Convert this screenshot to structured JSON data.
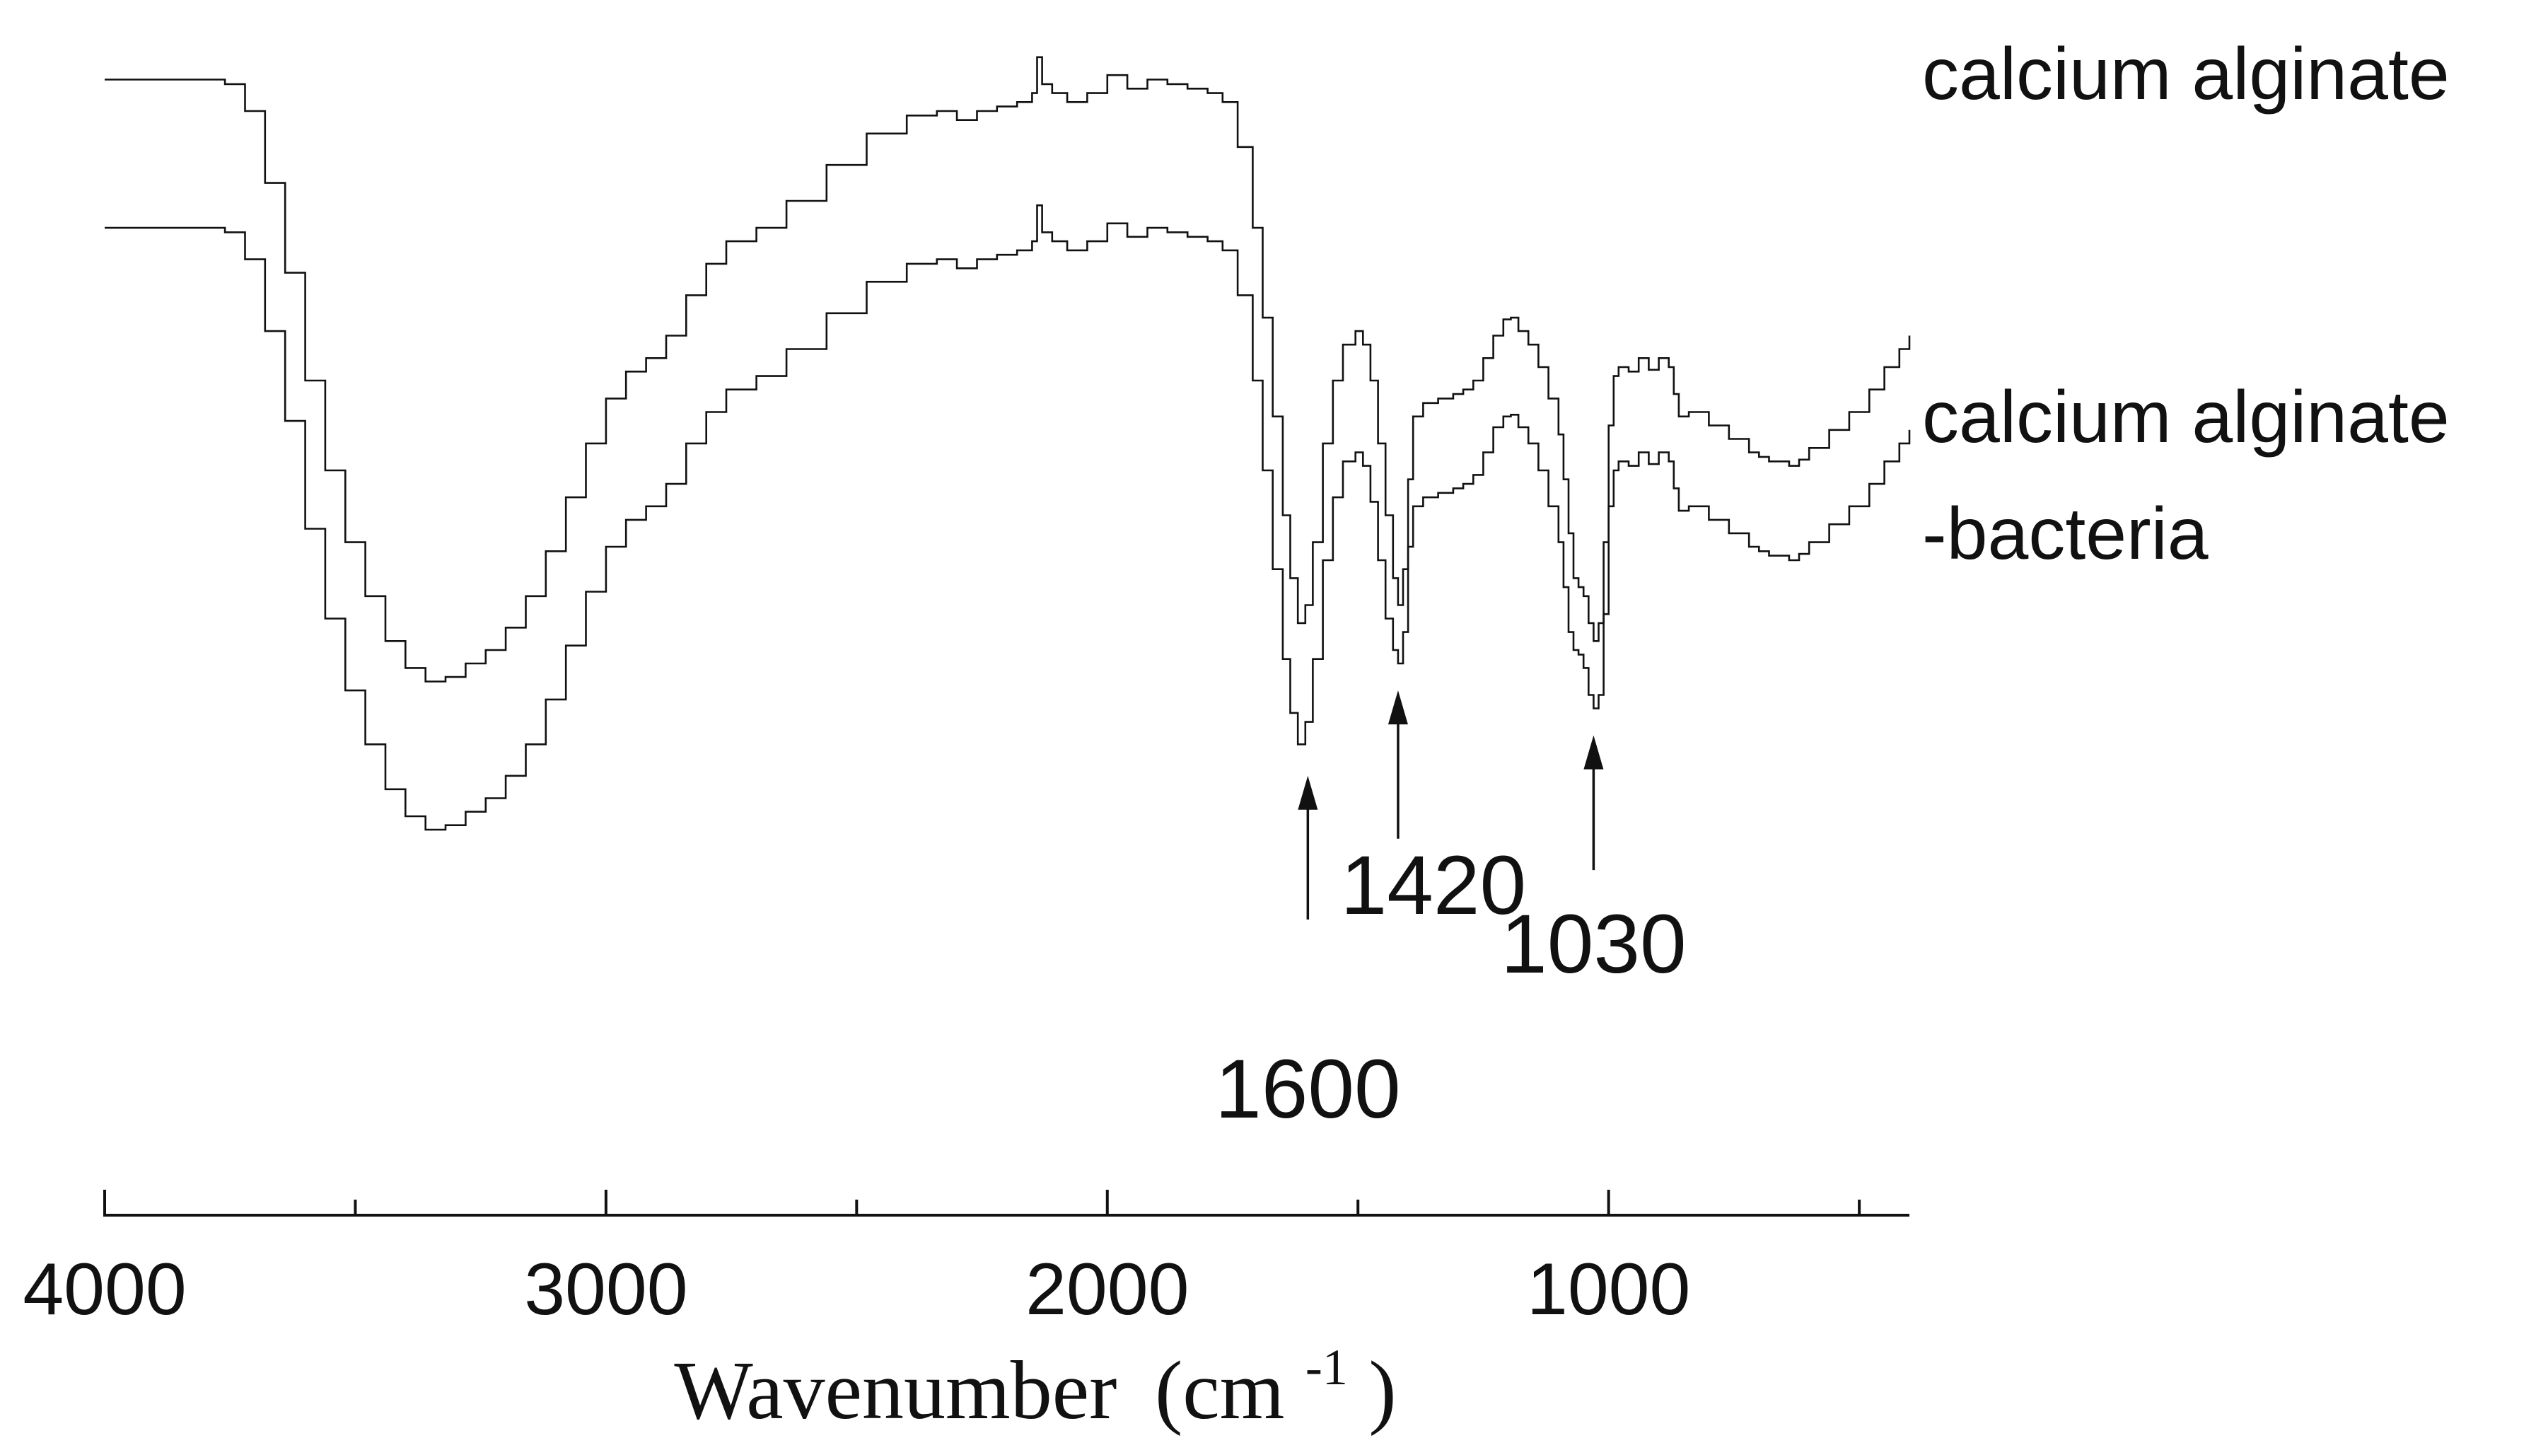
{
  "chart_data": {
    "type": "line",
    "title": "",
    "xlabel": "Wavenumber",
    "xlabel_unit_open": "(cm",
    "xlabel_unit_sup": "-1",
    "xlabel_unit_close": ")",
    "ylabel": "",
    "xlim": [
      4000,
      400
    ],
    "x_reversed": true,
    "grid": false,
    "x_ticks": [
      {
        "value": 4000,
        "label": "4000"
      },
      {
        "value": 3000,
        "label": "3000"
      },
      {
        "value": 2000,
        "label": "2000"
      },
      {
        "value": 1000,
        "label": "1000"
      }
    ],
    "x_minor_ticks": [
      3500,
      2500,
      1500,
      500
    ],
    "series": [
      {
        "name": "calcium alginate",
        "label_lines": [
          "calcium alginate"
        ],
        "points": [
          [
            4000,
            0.935
          ],
          [
            3800,
            0.935
          ],
          [
            3760,
            0.93
          ],
          [
            3720,
            0.9
          ],
          [
            3680,
            0.82
          ],
          [
            3640,
            0.72
          ],
          [
            3600,
            0.6
          ],
          [
            3560,
            0.5
          ],
          [
            3520,
            0.42
          ],
          [
            3480,
            0.36
          ],
          [
            3440,
            0.31
          ],
          [
            3400,
            0.28
          ],
          [
            3360,
            0.265
          ],
          [
            3320,
            0.27
          ],
          [
            3280,
            0.285
          ],
          [
            3240,
            0.3
          ],
          [
            3200,
            0.325
          ],
          [
            3160,
            0.36
          ],
          [
            3120,
            0.41
          ],
          [
            3080,
            0.47
          ],
          [
            3040,
            0.53
          ],
          [
            3000,
            0.58
          ],
          [
            2960,
            0.61
          ],
          [
            2920,
            0.625
          ],
          [
            2880,
            0.65
          ],
          [
            2840,
            0.695
          ],
          [
            2800,
            0.73
          ],
          [
            2760,
            0.755
          ],
          [
            2700,
            0.77
          ],
          [
            2640,
            0.8
          ],
          [
            2560,
            0.84
          ],
          [
            2480,
            0.875
          ],
          [
            2400,
            0.895
          ],
          [
            2340,
            0.9
          ],
          [
            2300,
            0.89
          ],
          [
            2260,
            0.9
          ],
          [
            2220,
            0.905
          ],
          [
            2180,
            0.91
          ],
          [
            2150,
            0.92
          ],
          [
            2140,
            0.96
          ],
          [
            2130,
            0.93
          ],
          [
            2110,
            0.92
          ],
          [
            2080,
            0.91
          ],
          [
            2040,
            0.92
          ],
          [
            2000,
            0.94
          ],
          [
            1960,
            0.925
          ],
          [
            1920,
            0.935
          ],
          [
            1880,
            0.93
          ],
          [
            1840,
            0.925
          ],
          [
            1800,
            0.92
          ],
          [
            1770,
            0.91
          ],
          [
            1740,
            0.86
          ],
          [
            1710,
            0.77
          ],
          [
            1690,
            0.67
          ],
          [
            1670,
            0.56
          ],
          [
            1650,
            0.45
          ],
          [
            1635,
            0.38
          ],
          [
            1620,
            0.33
          ],
          [
            1605,
            0.35
          ],
          [
            1590,
            0.42
          ],
          [
            1570,
            0.53
          ],
          [
            1550,
            0.6
          ],
          [
            1530,
            0.64
          ],
          [
            1505,
            0.655
          ],
          [
            1490,
            0.64
          ],
          [
            1475,
            0.6
          ],
          [
            1460,
            0.53
          ],
          [
            1445,
            0.45
          ],
          [
            1430,
            0.38
          ],
          [
            1420,
            0.35
          ],
          [
            1410,
            0.39
          ],
          [
            1400,
            0.49
          ],
          [
            1390,
            0.56
          ],
          [
            1370,
            0.575
          ],
          [
            1340,
            0.58
          ],
          [
            1310,
            0.585
          ],
          [
            1290,
            0.59
          ],
          [
            1270,
            0.6
          ],
          [
            1250,
            0.625
          ],
          [
            1230,
            0.65
          ],
          [
            1210,
            0.668
          ],
          [
            1195,
            0.67
          ],
          [
            1180,
            0.655
          ],
          [
            1160,
            0.64
          ],
          [
            1140,
            0.615
          ],
          [
            1120,
            0.58
          ],
          [
            1100,
            0.54
          ],
          [
            1090,
            0.49
          ],
          [
            1080,
            0.43
          ],
          [
            1070,
            0.38
          ],
          [
            1060,
            0.37
          ],
          [
            1050,
            0.36
          ],
          [
            1040,
            0.33
          ],
          [
            1030,
            0.31
          ],
          [
            1020,
            0.33
          ],
          [
            1010,
            0.42
          ],
          [
            1000,
            0.55
          ],
          [
            990,
            0.605
          ],
          [
            980,
            0.615
          ],
          [
            960,
            0.61
          ],
          [
            940,
            0.625
          ],
          [
            920,
            0.612
          ],
          [
            900,
            0.625
          ],
          [
            880,
            0.615
          ],
          [
            870,
            0.585
          ],
          [
            860,
            0.56
          ],
          [
            840,
            0.565
          ],
          [
            800,
            0.55
          ],
          [
            760,
            0.535
          ],
          [
            720,
            0.52
          ],
          [
            700,
            0.515
          ],
          [
            680,
            0.51
          ],
          [
            660,
            0.51
          ],
          [
            640,
            0.505
          ],
          [
            620,
            0.512
          ],
          [
            600,
            0.525
          ],
          [
            560,
            0.545
          ],
          [
            520,
            0.565
          ],
          [
            480,
            0.59
          ],
          [
            450,
            0.615
          ],
          [
            420,
            0.635
          ],
          [
            400,
            0.65
          ]
        ]
      },
      {
        "name": "calcium alginate -bacteria",
        "label_lines": [
          "calcium alginate",
          "-bacteria"
        ],
        "points": [
          [
            4000,
            0.77
          ],
          [
            3800,
            0.77
          ],
          [
            3760,
            0.765
          ],
          [
            3720,
            0.735
          ],
          [
            3680,
            0.655
          ],
          [
            3640,
            0.555
          ],
          [
            3600,
            0.435
          ],
          [
            3560,
            0.335
          ],
          [
            3520,
            0.255
          ],
          [
            3480,
            0.195
          ],
          [
            3440,
            0.145
          ],
          [
            3400,
            0.115
          ],
          [
            3360,
            0.1
          ],
          [
            3320,
            0.105
          ],
          [
            3280,
            0.12
          ],
          [
            3240,
            0.135
          ],
          [
            3200,
            0.16
          ],
          [
            3160,
            0.195
          ],
          [
            3120,
            0.245
          ],
          [
            3080,
            0.305
          ],
          [
            3040,
            0.365
          ],
          [
            3000,
            0.415
          ],
          [
            2960,
            0.445
          ],
          [
            2920,
            0.46
          ],
          [
            2880,
            0.485
          ],
          [
            2840,
            0.53
          ],
          [
            2800,
            0.565
          ],
          [
            2760,
            0.59
          ],
          [
            2700,
            0.605
          ],
          [
            2640,
            0.635
          ],
          [
            2560,
            0.675
          ],
          [
            2480,
            0.71
          ],
          [
            2400,
            0.73
          ],
          [
            2340,
            0.735
          ],
          [
            2300,
            0.725
          ],
          [
            2260,
            0.735
          ],
          [
            2220,
            0.74
          ],
          [
            2180,
            0.745
          ],
          [
            2150,
            0.755
          ],
          [
            2140,
            0.795
          ],
          [
            2130,
            0.765
          ],
          [
            2110,
            0.755
          ],
          [
            2080,
            0.745
          ],
          [
            2040,
            0.755
          ],
          [
            2000,
            0.775
          ],
          [
            1960,
            0.76
          ],
          [
            1920,
            0.77
          ],
          [
            1880,
            0.765
          ],
          [
            1840,
            0.76
          ],
          [
            1800,
            0.755
          ],
          [
            1770,
            0.745
          ],
          [
            1740,
            0.695
          ],
          [
            1710,
            0.6
          ],
          [
            1690,
            0.5
          ],
          [
            1670,
            0.39
          ],
          [
            1650,
            0.29
          ],
          [
            1635,
            0.23
          ],
          [
            1620,
            0.195
          ],
          [
            1605,
            0.22
          ],
          [
            1590,
            0.29
          ],
          [
            1570,
            0.4
          ],
          [
            1550,
            0.47
          ],
          [
            1530,
            0.51
          ],
          [
            1505,
            0.52
          ],
          [
            1490,
            0.505
          ],
          [
            1475,
            0.465
          ],
          [
            1460,
            0.4
          ],
          [
            1445,
            0.335
          ],
          [
            1430,
            0.3
          ],
          [
            1420,
            0.285
          ],
          [
            1410,
            0.32
          ],
          [
            1400,
            0.415
          ],
          [
            1390,
            0.46
          ],
          [
            1370,
            0.47
          ],
          [
            1340,
            0.475
          ],
          [
            1310,
            0.48
          ],
          [
            1290,
            0.485
          ],
          [
            1270,
            0.495
          ],
          [
            1250,
            0.52
          ],
          [
            1230,
            0.548
          ],
          [
            1210,
            0.56
          ],
          [
            1195,
            0.562
          ],
          [
            1180,
            0.548
          ],
          [
            1160,
            0.53
          ],
          [
            1140,
            0.5
          ],
          [
            1120,
            0.46
          ],
          [
            1100,
            0.42
          ],
          [
            1090,
            0.37
          ],
          [
            1080,
            0.32
          ],
          [
            1070,
            0.3
          ],
          [
            1060,
            0.295
          ],
          [
            1050,
            0.28
          ],
          [
            1040,
            0.25
          ],
          [
            1030,
            0.235
          ],
          [
            1020,
            0.25
          ],
          [
            1010,
            0.34
          ],
          [
            1000,
            0.46
          ],
          [
            990,
            0.5
          ],
          [
            980,
            0.51
          ],
          [
            960,
            0.505
          ],
          [
            940,
            0.52
          ],
          [
            920,
            0.507
          ],
          [
            900,
            0.52
          ],
          [
            880,
            0.51
          ],
          [
            870,
            0.48
          ],
          [
            860,
            0.455
          ],
          [
            840,
            0.46
          ],
          [
            800,
            0.445
          ],
          [
            760,
            0.43
          ],
          [
            720,
            0.415
          ],
          [
            700,
            0.41
          ],
          [
            680,
            0.405
          ],
          [
            660,
            0.405
          ],
          [
            640,
            0.4
          ],
          [
            620,
            0.407
          ],
          [
            600,
            0.42
          ],
          [
            560,
            0.44
          ],
          [
            520,
            0.46
          ],
          [
            480,
            0.485
          ],
          [
            450,
            0.51
          ],
          [
            420,
            0.53
          ],
          [
            400,
            0.545
          ]
        ]
      }
    ],
    "annotations": [
      {
        "label": "1600",
        "x": 1600,
        "arrow_tip": 0.16,
        "arrow_tail": 0.0,
        "label_side": "below"
      },
      {
        "label": "1420",
        "x": 1420,
        "arrow_tip": 0.255,
        "arrow_tail": 0.09,
        "label_side": "below"
      },
      {
        "label": "1030",
        "x": 1030,
        "arrow_tip": 0.205,
        "arrow_tail": 0.055,
        "label_side": "below"
      }
    ]
  }
}
